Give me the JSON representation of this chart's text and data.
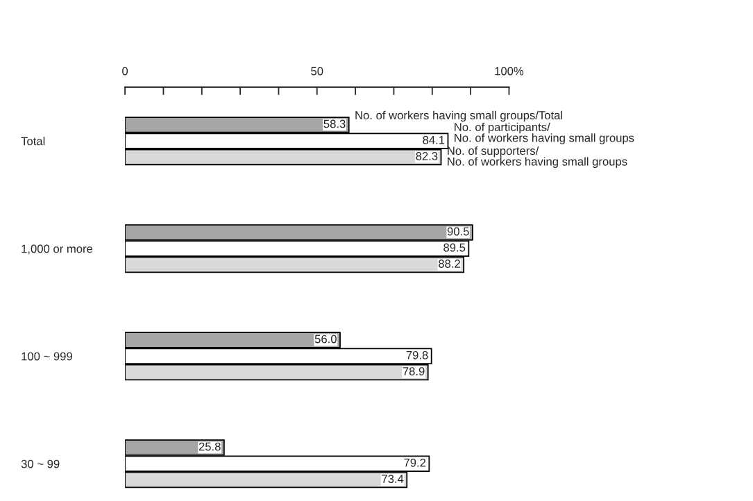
{
  "chart_data": {
    "type": "bar",
    "orientation": "horizontal",
    "categories": [
      "Total",
      "1,000 or more",
      "100 ~ 999",
      "30 ~ 99"
    ],
    "xlim": [
      0,
      100
    ],
    "xticks": [
      0,
      {
        "value": 10,
        "label": null
      },
      {
        "value": 20,
        "label": null
      },
      {
        "value": 30,
        "label": null
      },
      {
        "value": 40,
        "label": null
      },
      50,
      {
        "value": 60,
        "label": null
      },
      {
        "value": 70,
        "label": null
      },
      {
        "value": 80,
        "label": null
      },
      {
        "value": 90,
        "label": null
      },
      {
        "value": 100,
        "label": "100%"
      }
    ],
    "series": [
      {
        "name": "No. of workers having small groups/Total",
        "color": "#a6a6a6",
        "values": [
          58.3,
          90.5,
          56.0,
          25.8
        ],
        "value_labels": [
          "58.3",
          "90.5",
          "56.0",
          "25.8"
        ]
      },
      {
        "name": "No. of participants/\nNo. of workers having small groups",
        "color": "#ffffff",
        "values": [
          84.1,
          89.5,
          79.8,
          79.2
        ],
        "value_labels": [
          "84.1",
          "89.5",
          "79.8",
          "79.2"
        ]
      },
      {
        "name": "No. of supporters/\nNo. of workers having small groups",
        "color": "#d9d9d9",
        "values": [
          82.3,
          88.2,
          78.9,
          73.4
        ],
        "value_labels": [
          "82.3",
          "88.2",
          "78.9",
          "73.4"
        ]
      }
    ]
  }
}
